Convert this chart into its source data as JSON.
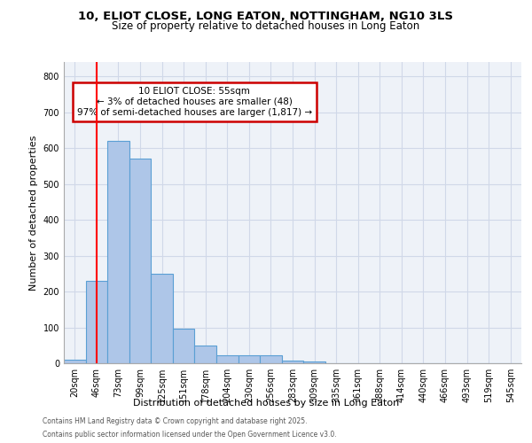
{
  "title1": "10, ELIOT CLOSE, LONG EATON, NOTTINGHAM, NG10 3LS",
  "title2": "Size of property relative to detached houses in Long Eaton",
  "xlabel": "Distribution of detached houses by size in Long Eaton",
  "ylabel": "Number of detached properties",
  "bar_labels": [
    "20sqm",
    "46sqm",
    "73sqm",
    "99sqm",
    "125sqm",
    "151sqm",
    "178sqm",
    "204sqm",
    "230sqm",
    "256sqm",
    "283sqm",
    "309sqm",
    "335sqm",
    "361sqm",
    "388sqm",
    "414sqm",
    "440sqm",
    "466sqm",
    "493sqm",
    "519sqm",
    "545sqm"
  ],
  "bar_values": [
    10,
    230,
    620,
    570,
    250,
    97,
    50,
    22,
    22,
    22,
    8,
    4,
    1,
    0,
    0,
    0,
    0,
    0,
    0,
    0,
    0
  ],
  "bar_color": "#aec6e8",
  "bar_edge_color": "#5a9fd4",
  "grid_color": "#d0d8e8",
  "bg_color": "#eef2f8",
  "red_line_x": 1.0,
  "annotation_text": "10 ELIOT CLOSE: 55sqm\n← 3% of detached houses are smaller (48)\n97% of semi-detached houses are larger (1,817) →",
  "annotation_box_color": "#cc0000",
  "ylim": [
    0,
    840
  ],
  "yticks": [
    0,
    100,
    200,
    300,
    400,
    500,
    600,
    700,
    800
  ],
  "footnote1": "Contains HM Land Registry data © Crown copyright and database right 2025.",
  "footnote2": "Contains public sector information licensed under the Open Government Licence v3.0.",
  "title1_fontsize": 9.5,
  "title2_fontsize": 8.5,
  "ylabel_fontsize": 8,
  "xlabel_fontsize": 8,
  "tick_fontsize": 7,
  "annot_fontsize": 7.5,
  "footnote_fontsize": 5.5
}
